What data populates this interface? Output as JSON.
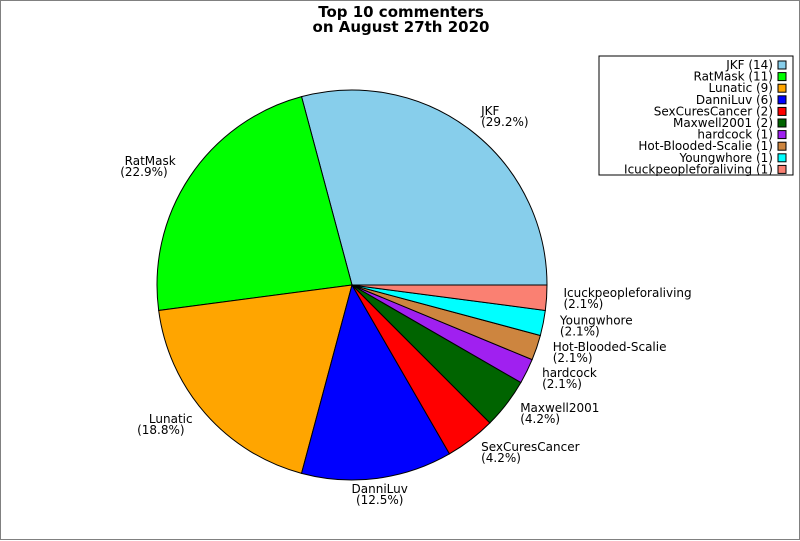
{
  "chart_data": {
    "type": "pie",
    "title": "Top 10 commenters\non August 27th 2020",
    "start_angle_deg": 0,
    "direction": "counterclockwise",
    "legend_position": "top-right",
    "slices": [
      {
        "name": "JKF",
        "value": 14,
        "percent_label": "(29.2%)",
        "legend_label": "JKF (14)",
        "color": "#87CEEB"
      },
      {
        "name": "RatMask",
        "value": 11,
        "percent_label": "(22.9%)",
        "legend_label": "RatMask (11)",
        "color": "#00FF00"
      },
      {
        "name": "Lunatic",
        "value": 9,
        "percent_label": "(18.8%)",
        "legend_label": "Lunatic (9)",
        "color": "#FFA500"
      },
      {
        "name": "DanniLuv",
        "value": 6,
        "percent_label": "(12.5%)",
        "legend_label": "DanniLuv (6)",
        "color": "#0000FF"
      },
      {
        "name": "SexCuresCancer",
        "value": 2,
        "percent_label": "(4.2%)",
        "legend_label": "SexCuresCancer (2)",
        "color": "#FF0000"
      },
      {
        "name": "Maxwell2001",
        "value": 2,
        "percent_label": "(4.2%)",
        "legend_label": "Maxwell2001 (2)",
        "color": "#006400"
      },
      {
        "name": "hardcock",
        "value": 1,
        "percent_label": "(2.1%)",
        "legend_label": "hardcock (1)",
        "color": "#A020F0"
      },
      {
        "name": "Hot-Blooded-Scalie",
        "value": 1,
        "percent_label": "(2.1%)",
        "legend_label": "Hot-Blooded-Scalie (1)",
        "color": "#CD853F"
      },
      {
        "name": "Youngwhore",
        "value": 1,
        "percent_label": "(2.1%)",
        "legend_label": "Youngwhore (1)",
        "color": "#00FFFF"
      },
      {
        "name": "Icuckpeopleforaliving",
        "value": 1,
        "percent_label": "(2.1%)",
        "legend_label": "Icuckpeopleforaliving (1)",
        "color": "#FA8072"
      }
    ]
  }
}
